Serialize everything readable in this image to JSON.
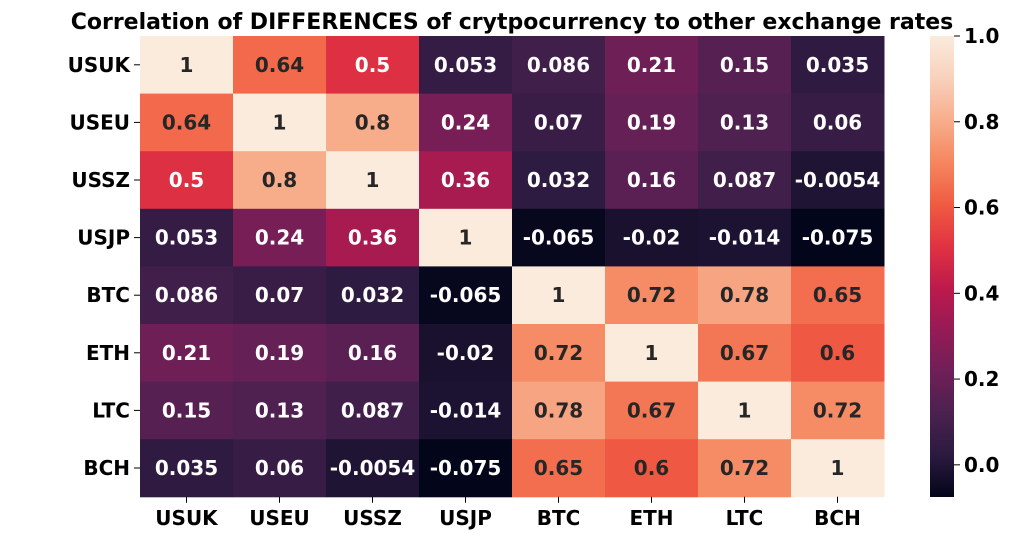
{
  "chart_data": {
    "type": "heatmap",
    "title": "Correlation of DIFFERENCES of crytpocurrency to other exchange rates",
    "xlabel": "",
    "ylabel": "",
    "x_categories": [
      "USUK",
      "USEU",
      "USSZ",
      "USJP",
      "BTC",
      "ETH",
      "LTC",
      "BCH"
    ],
    "y_categories": [
      "USUK",
      "USEU",
      "USSZ",
      "USJP",
      "BTC",
      "ETH",
      "LTC",
      "BCH"
    ],
    "values": [
      [
        1,
        0.64,
        0.5,
        0.053,
        0.086,
        0.21,
        0.15,
        0.035
      ],
      [
        0.64,
        1,
        0.8,
        0.24,
        0.07,
        0.19,
        0.13,
        0.06
      ],
      [
        0.5,
        0.8,
        1,
        0.36,
        0.032,
        0.16,
        0.087,
        -0.0054
      ],
      [
        0.053,
        0.24,
        0.36,
        1,
        -0.065,
        -0.02,
        -0.014,
        -0.075
      ],
      [
        0.086,
        0.07,
        0.032,
        -0.065,
        1,
        0.72,
        0.78,
        0.65
      ],
      [
        0.21,
        0.19,
        0.16,
        -0.02,
        0.72,
        1,
        0.67,
        0.6
      ],
      [
        0.15,
        0.13,
        0.087,
        -0.014,
        0.78,
        0.67,
        1,
        0.72
      ],
      [
        0.035,
        0.06,
        -0.0054,
        -0.075,
        0.65,
        0.6,
        0.72,
        1
      ]
    ],
    "value_labels": [
      [
        "1",
        "0.64",
        "0.5",
        "0.053",
        "0.086",
        "0.21",
        "0.15",
        "0.035"
      ],
      [
        "0.64",
        "1",
        "0.8",
        "0.24",
        "0.07",
        "0.19",
        "0.13",
        "0.06"
      ],
      [
        "0.5",
        "0.8",
        "1",
        "0.36",
        "0.032",
        "0.16",
        "0.087",
        "-0.0054"
      ],
      [
        "0.053",
        "0.24",
        "0.36",
        "1",
        "-0.065",
        "-0.02",
        "-0.014",
        "-0.075"
      ],
      [
        "0.086",
        "0.07",
        "0.032",
        "-0.065",
        "1",
        "0.72",
        "0.78",
        "0.65"
      ],
      [
        "0.21",
        "0.19",
        "0.16",
        "-0.02",
        "0.72",
        "1",
        "0.67",
        "0.6"
      ],
      [
        "0.15",
        "0.13",
        "0.087",
        "-0.014",
        "0.78",
        "0.67",
        "1",
        "0.72"
      ],
      [
        "0.035",
        "0.06",
        "-0.0054",
        "-0.075",
        "0.65",
        "0.6",
        "0.72",
        "1"
      ]
    ],
    "colorbar": {
      "range": [
        -0.075,
        1.0
      ],
      "ticks": [
        0.0,
        0.2,
        0.4,
        0.6,
        0.8,
        1.0
      ],
      "tick_labels": [
        "0.0",
        "0.2",
        "0.4",
        "0.6",
        "0.8",
        "1.0"
      ],
      "colormap": "rocket",
      "colors": [
        "#03051a",
        "#2b1a3f",
        "#4b2150",
        "#701f57",
        "#961b56",
        "#be1a4c",
        "#e13342",
        "#f05c42",
        "#f58760",
        "#f7ae8c",
        "#f9d1bd",
        "#faebdd"
      ]
    },
    "annotation_text_colors": {
      "dark_cells": "#ffffff",
      "light_cells": "#262626"
    },
    "grid": false
  }
}
